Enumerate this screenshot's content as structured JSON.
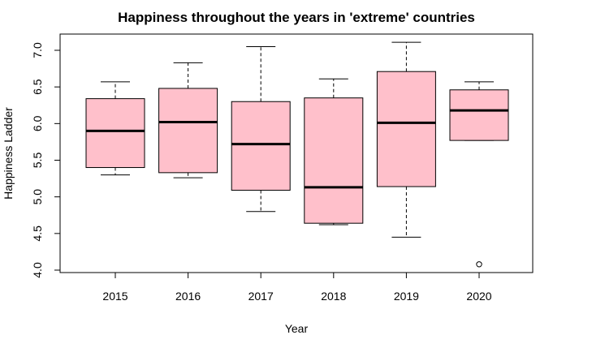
{
  "chart_data": {
    "type": "boxplot",
    "title": "Happiness throughout the years in 'extreme' countries",
    "xlabel": "Year",
    "ylabel": "Happiness Ladder",
    "ylim": [
      4.0,
      7.0
    ],
    "yticks": [
      4.0,
      4.5,
      5.0,
      5.5,
      6.0,
      6.5,
      7.0
    ],
    "ytick_labels": [
      "4.0",
      "4.5",
      "5.0",
      "5.5",
      "6.0",
      "6.5",
      "7.0"
    ],
    "box_color": "#ffc0cb",
    "categories": [
      "2015",
      "2016",
      "2017",
      "2018",
      "2019",
      "2020"
    ],
    "boxes": [
      {
        "min": 5.3,
        "q1": 5.4,
        "median": 5.9,
        "q3": 6.34,
        "max": 6.57,
        "outliers": []
      },
      {
        "min": 5.26,
        "q1": 5.33,
        "median": 6.02,
        "q3": 6.48,
        "max": 6.83,
        "outliers": []
      },
      {
        "min": 4.8,
        "q1": 5.09,
        "median": 5.72,
        "q3": 6.3,
        "max": 7.05,
        "outliers": []
      },
      {
        "min": 4.62,
        "q1": 4.64,
        "median": 5.13,
        "q3": 6.35,
        "max": 6.61,
        "outliers": []
      },
      {
        "min": 4.45,
        "q1": 5.14,
        "median": 6.01,
        "q3": 6.71,
        "max": 7.11,
        "outliers": []
      },
      {
        "min": 5.77,
        "q1": 5.77,
        "median": 6.18,
        "q3": 6.46,
        "max": 6.57,
        "outliers": [
          4.08
        ]
      }
    ]
  }
}
